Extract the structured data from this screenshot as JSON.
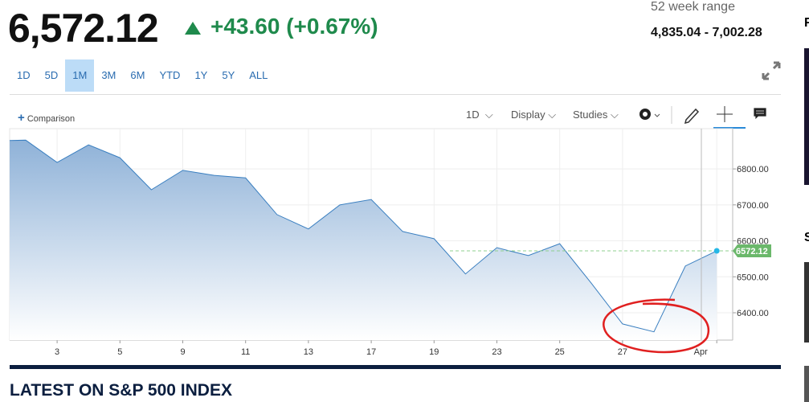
{
  "header": {
    "price": "6,572.12",
    "change": "+43.60 (+0.67%)",
    "range_label": "52 week range",
    "range": "4,835.04 - 7,002.28"
  },
  "time_ranges": [
    "1D",
    "5D",
    "1M",
    "3M",
    "6M",
    "YTD",
    "1Y",
    "5Y",
    "ALL"
  ],
  "selected_range_index": 2,
  "toolbar": {
    "comparison": "Comparison",
    "interval": "1D",
    "display": "Display",
    "studies": "Studies"
  },
  "chart_data": {
    "type": "area",
    "categories": [
      null,
      null,
      "3",
      null,
      "5",
      null,
      "9",
      null,
      "11",
      null,
      "13",
      null,
      "17",
      null,
      "19",
      null,
      "23",
      null,
      "25",
      null,
      "27",
      null,
      null,
      "Apr"
    ],
    "values": [
      6878,
      6880,
      6818,
      6867,
      6831,
      6742,
      6796,
      6782,
      6775,
      6673,
      6633,
      6700,
      6715,
      6626,
      6606,
      6508,
      6581,
      6559,
      6592,
      6483,
      6369,
      6347,
      6530,
      6572.12
    ],
    "last_label": "6572.12",
    "color": "#3a7fc0",
    "ylim": [
      6324,
      6912
    ],
    "yticks": [
      {
        "value": 6400,
        "label": "6400.00"
      },
      {
        "value": 6500,
        "label": "6500.00"
      },
      {
        "value": 6600,
        "label": "6600.00"
      },
      {
        "value": 6700,
        "label": "6700.00"
      },
      {
        "value": 6800,
        "label": "6800.00"
      }
    ],
    "grid": true
  },
  "sidebar_letters": [
    "F",
    "S"
  ],
  "section_title": "LATEST ON S&P 500 INDEX"
}
